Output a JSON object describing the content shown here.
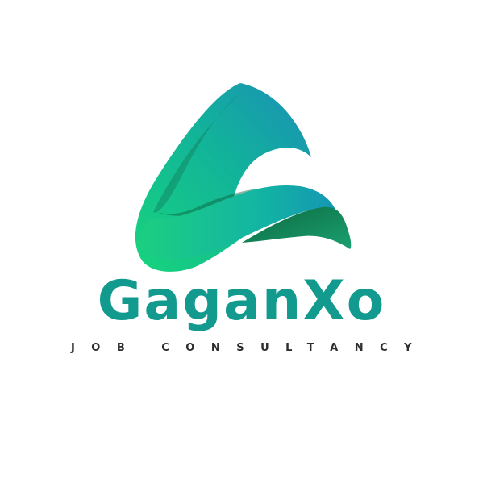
{
  "logo": {
    "brand_name": "GaganXo",
    "tagline": "JOB CONSULTANCY",
    "colors": {
      "wordmark": "#129a8e",
      "tagline": "#2e2e2e",
      "gradient_green": "#17d47c",
      "gradient_teal": "#12a8a4",
      "gradient_blue": "#1a8fb8",
      "gradient_dark_green": "#0c7a4a"
    }
  }
}
